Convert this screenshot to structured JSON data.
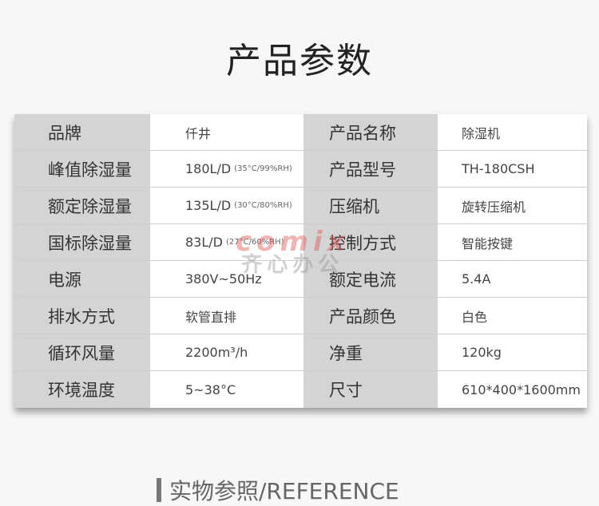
{
  "title": "产品参数",
  "rows": [
    {
      "l1": "品牌",
      "v1": "仟井",
      "n1": "",
      "l2": "产品名称",
      "v2": "除湿机"
    },
    {
      "l1": "峰值除湿量",
      "v1": "180L/D",
      "n1": "(35°C/99%RH)",
      "l2": "产品型号",
      "v2": "TH-180CSH"
    },
    {
      "l1": "额定除湿量",
      "v1": "135L/D",
      "n1": "(30°C/80%RH)",
      "l2": "压缩机",
      "v2": "旋转压缩机"
    },
    {
      "l1": "国标除湿量",
      "v1": "83L/D",
      "n1": "(27°C/60%RH)",
      "l2": "控制方式",
      "v2": "智能按键"
    },
    {
      "l1": "电源",
      "v1": "380V~50Hz",
      "n1": "",
      "l2": "额定电流",
      "v2": "5.4A"
    },
    {
      "l1": "排水方式",
      "v1": "软管直排",
      "n1": "",
      "l2": "产品颜色",
      "v2": "白色"
    },
    {
      "l1": "循环风量",
      "v1": "2200m³/h",
      "n1": "",
      "l2": "净重",
      "v2": "120kg"
    },
    {
      "l1": "环境温度",
      "v1": "5~38°C",
      "n1": "",
      "l2": "尺寸",
      "v2": "610*400*1600mm"
    }
  ],
  "watermark": {
    "en": "comix",
    "cn": "齐心办公"
  },
  "reference": "实物参照/REFERENCE",
  "colors": {
    "label_bg": "#d4d4d4",
    "page_bg": "#f7f7f7"
  }
}
